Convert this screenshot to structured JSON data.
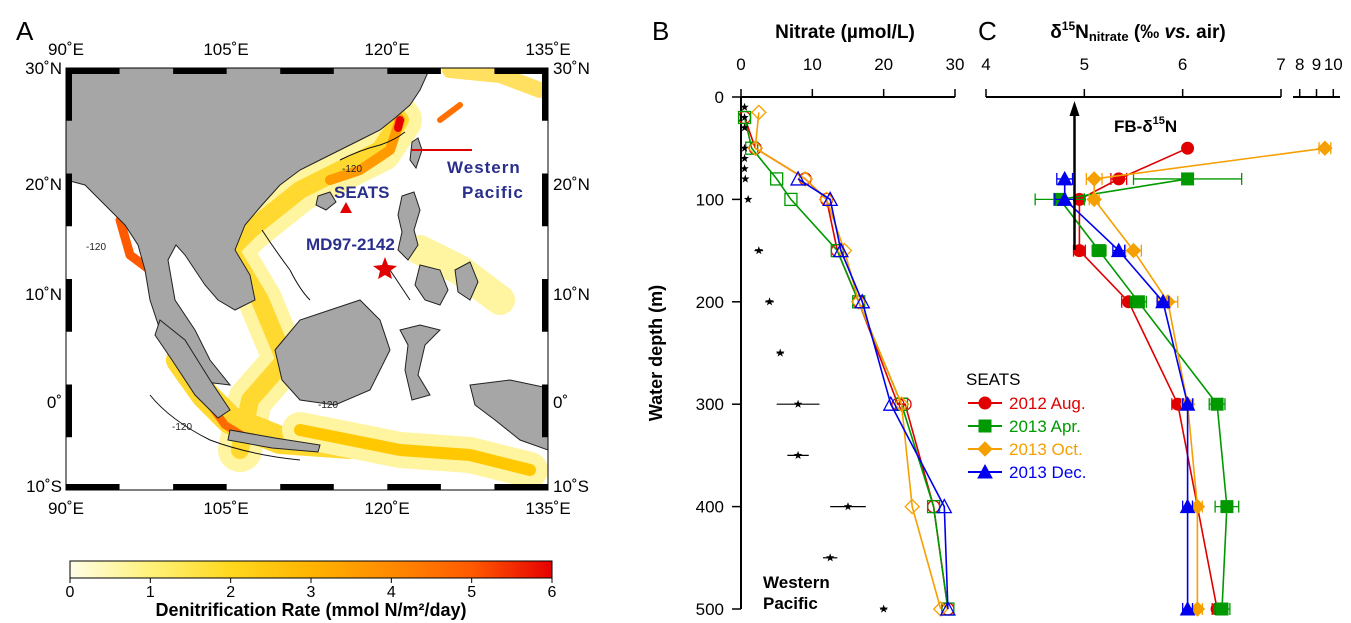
{
  "figure": {
    "panels": [
      "A",
      "B",
      "C"
    ]
  },
  "map": {
    "top_lon_labels": [
      "90˚E",
      "105˚E",
      "120˚E",
      "135˚E"
    ],
    "bottom_lon_labels": [
      "90˚E",
      "105˚E",
      "120˚E",
      "135˚E"
    ],
    "lat_labels": [
      "30˚N",
      "20˚N",
      "10˚N",
      "0˚",
      "10˚S"
    ],
    "sites": [
      {
        "name": "SEATS",
        "marker": "triangle",
        "color": "#e00000",
        "lon": 116.0,
        "lat": 18.0
      },
      {
        "name": "MD97-2142",
        "marker": "star",
        "color": "#e00000",
        "lon": 119.5,
        "lat": 12.7
      }
    ],
    "western_pacific_label": [
      "Western",
      "Pacific"
    ],
    "contour_label": "-120",
    "colorbar": {
      "title": "Denitrification Rate (mmol N/m²/day)",
      "ticks": [
        "0",
        "1",
        "2",
        "3",
        "4",
        "5",
        "6"
      ],
      "min": 0,
      "max": 6,
      "colors": [
        "#fffde6",
        "#fff27a",
        "#ffd81e",
        "#ffb400",
        "#ff8a00",
        "#ff5a00",
        "#e60000"
      ]
    },
    "land_color": "#a6a6a6"
  },
  "chart_data": [
    {
      "panel": "B",
      "type": "line",
      "title": "Nitrate (µmol/L)",
      "ylabel": "Water depth (m)",
      "xlim": [
        0,
        30
      ],
      "ylim": [
        0,
        500
      ],
      "x_ticks": [
        "0",
        "10",
        "20",
        "30"
      ],
      "y_ticks": [
        "0",
        "100",
        "200",
        "300",
        "400",
        "500"
      ],
      "series": [
        {
          "name": "2012 Aug.",
          "color": "#e00000",
          "marker": "circle-open",
          "x": [
            0.5,
            2.0,
            9.0,
            12.0,
            13.5,
            16.5,
            22.0,
            23.0,
            27.0,
            29.0
          ],
          "y": [
            20,
            50,
            80,
            100,
            150,
            200,
            300,
            300,
            400,
            500
          ]
        },
        {
          "name": "2013 Apr.",
          "color": "#009900",
          "marker": "square-open",
          "x": [
            0.5,
            1.5,
            5.0,
            7.0,
            13.5,
            16.5,
            22.5,
            27.0,
            29.0
          ],
          "y": [
            20,
            50,
            80,
            100,
            150,
            200,
            300,
            400,
            500
          ]
        },
        {
          "name": "2013 Oct.",
          "color": "#f5a000",
          "marker": "diamond-open",
          "x": [
            2.5,
            2.0,
            9.0,
            12.0,
            14.5,
            16.5,
            22.5,
            24.0,
            28.0
          ],
          "y": [
            15,
            50,
            80,
            100,
            150,
            200,
            300,
            400,
            500
          ]
        },
        {
          "name": "2013 Dec.",
          "color": "#0000ee",
          "marker": "triangle-open",
          "x": [
            8.0,
            12.5,
            14.0,
            17.0,
            21.0,
            28.5,
            29.0
          ],
          "y": [
            80,
            100,
            150,
            200,
            300,
            400,
            500
          ]
        }
      ],
      "western_pacific": {
        "label": [
          "Western",
          "Pacific"
        ],
        "marker": "star",
        "color": "#000000",
        "x": [
          0.5,
          0.5,
          0.5,
          0.5,
          0.5,
          0.5,
          0.6,
          1.0,
          2.5,
          4.0,
          5.5,
          8.0,
          8.0,
          15.0,
          12.5,
          20.0
        ],
        "y": [
          10,
          20,
          30,
          50,
          60,
          70,
          80,
          100,
          150,
          200,
          250,
          300,
          350,
          400,
          450,
          500
        ],
        "xerr": [
          0.3,
          0.3,
          0.3,
          0.3,
          0.3,
          0.3,
          0.3,
          0.3,
          0.6,
          0.6,
          0.5,
          3.0,
          1.5,
          2.5,
          1.0,
          0.5
        ]
      }
    },
    {
      "panel": "C",
      "type": "line",
      "title": "δ¹⁵Nnitrate (‰ vs. air)",
      "xlim": [
        4,
        7
      ],
      "x_ticks": [
        "4",
        "5",
        "6",
        "7"
      ],
      "x_ticks_broken": [
        "8",
        "9",
        "10"
      ],
      "ylim": [
        0,
        500
      ],
      "annotation": {
        "label": "FB-δ¹⁵N",
        "x": 4.9
      },
      "legend_title": "SEATS",
      "series": [
        {
          "name": "2012 Aug.",
          "color": "#e00000",
          "marker": "circle",
          "x": [
            6.05,
            5.35,
            4.95,
            4.95,
            5.45,
            5.95,
            6.35
          ],
          "y": [
            50,
            80,
            100,
            150,
            200,
            300,
            500
          ],
          "xerr": [
            0.02,
            0.08,
            0.05,
            0.06,
            0.07,
            0.06,
            0.05
          ]
        },
        {
          "name": "2013 Apr.",
          "color": "#009900",
          "marker": "square",
          "x": [
            6.05,
            4.75,
            5.15,
            5.55,
            6.35,
            6.45,
            6.4
          ],
          "y": [
            80,
            100,
            150,
            200,
            300,
            400,
            500
          ],
          "xerr": [
            0.55,
            0.25,
            0.07,
            0.08,
            0.08,
            0.12,
            0.08
          ]
        },
        {
          "name": "2013 Oct.",
          "color": "#f5a000",
          "marker": "diamond",
          "x": [
            9.5,
            5.1,
            5.1,
            5.5,
            5.85,
            6.05,
            6.15,
            6.15
          ],
          "y": [
            50,
            80,
            100,
            150,
            200,
            300,
            400,
            500
          ],
          "xerr": [
            0.35,
            0.08,
            0.05,
            0.08,
            0.1,
            0.06,
            0.05,
            0.05
          ]
        },
        {
          "name": "2013 Dec.",
          "color": "#0000ee",
          "marker": "triangle",
          "x": [
            4.8,
            4.8,
            5.35,
            5.8,
            6.05,
            6.05,
            6.05
          ],
          "y": [
            80,
            100,
            150,
            200,
            300,
            400,
            500
          ],
          "xerr": [
            0.08,
            0.1,
            0.06,
            0.06,
            0.05,
            0.05,
            0.05
          ]
        }
      ]
    }
  ]
}
